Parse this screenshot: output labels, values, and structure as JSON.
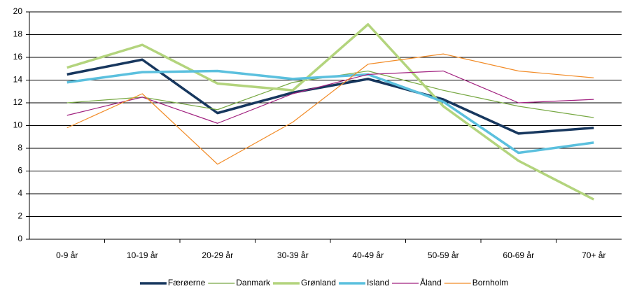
{
  "chart_data": {
    "type": "line",
    "categories": [
      "0-9 år",
      "10-19 år",
      "20-29 år",
      "30-39 år",
      "40-49 år",
      "50-59 år",
      "60-69 år",
      "70+ år"
    ],
    "series": [
      {
        "name": "Færøerne",
        "color": "#17375e",
        "line_width": 3.5,
        "values": [
          14.5,
          15.8,
          11.1,
          12.9,
          14.1,
          12.3,
          9.3,
          9.8
        ]
      },
      {
        "name": "Danmark",
        "color": "#77a843",
        "line_width": 1.2,
        "values": [
          12.0,
          12.5,
          11.4,
          13.8,
          14.8,
          13.1,
          11.7,
          10.7
        ]
      },
      {
        "name": "Grønland",
        "color": "#b3d47d",
        "line_width": 3.5,
        "values": [
          15.1,
          17.1,
          13.7,
          13.1,
          18.9,
          11.7,
          6.9,
          3.5
        ]
      },
      {
        "name": "Island",
        "color": "#5bc0de",
        "line_width": 3.5,
        "values": [
          13.8,
          14.7,
          14.8,
          14.1,
          14.5,
          12.1,
          7.6,
          8.5
        ]
      },
      {
        "name": "Åland",
        "color": "#a0207f",
        "line_width": 1.2,
        "values": [
          10.9,
          12.5,
          10.2,
          12.8,
          14.5,
          14.8,
          12.0,
          12.3
        ]
      },
      {
        "name": "Bornholm",
        "color": "#f28c28",
        "line_width": 1.2,
        "values": [
          9.8,
          12.8,
          6.6,
          10.3,
          15.4,
          16.3,
          14.8,
          14.2
        ]
      }
    ],
    "ylim": [
      0,
      20
    ],
    "yticks": [
      0,
      2,
      4,
      6,
      8,
      10,
      12,
      14,
      16,
      18,
      20
    ],
    "grid": true,
    "legend": "bottom"
  }
}
